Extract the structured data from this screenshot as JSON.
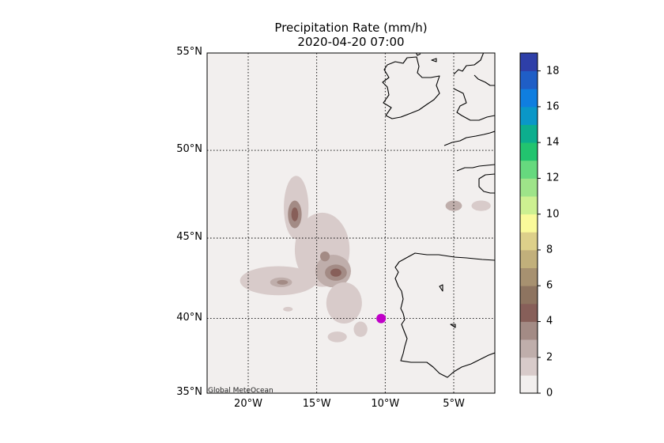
{
  "title": "Precipitation Rate (mm/h)",
  "subtitle": "2020-04-20 07:00",
  "credit": "Global MeteOcean",
  "map": {
    "lon_range": [
      -23,
      -2
    ],
    "lat_range": [
      35,
      55
    ],
    "projection": "mercator",
    "gridlines": "dotted",
    "lon_ticks": [
      {
        "value": -20,
        "label": "20°W"
      },
      {
        "value": -15,
        "label": "15°W"
      },
      {
        "value": -10,
        "label": "10°W"
      },
      {
        "value": -5,
        "label": "5°W"
      }
    ],
    "lat_ticks": [
      {
        "value": 35,
        "label": "35°N"
      },
      {
        "value": 40,
        "label": "40°N"
      },
      {
        "value": 45,
        "label": "45°N"
      },
      {
        "value": 50,
        "label": "50°N"
      },
      {
        "value": 55,
        "label": "55°N"
      }
    ],
    "marker": {
      "lon": -10.3,
      "lat": 40.0,
      "color": "#c000c8"
    }
  },
  "colorbar": {
    "min": 0,
    "max": 19,
    "step": 1,
    "tick_labels": [
      "0",
      "2",
      "4",
      "6",
      "8",
      "10",
      "12",
      "14",
      "16",
      "18"
    ],
    "tick_values": [
      0,
      2,
      4,
      6,
      8,
      10,
      12,
      14,
      16,
      18
    ],
    "colors": [
      "#f2efee",
      "#d8cbca",
      "#bfaeab",
      "#a38b85",
      "#875f59",
      "#8e7460",
      "#a79170",
      "#c2b07b",
      "#ddd08a",
      "#fafa9a",
      "#cdf091",
      "#9ee489",
      "#66d97e",
      "#22c46f",
      "#0cae8e",
      "#0a97c8",
      "#0f7ee0",
      "#1f5ec6",
      "#2e3fa8"
    ]
  },
  "precip_cells": [
    {
      "lon": -16.5,
      "lat": 46.8,
      "rx": 0.9,
      "ry": 1.8,
      "value": 1
    },
    {
      "lon": -16.6,
      "lat": 46.4,
      "rx": 0.5,
      "ry": 0.8,
      "value": 3
    },
    {
      "lon": -16.6,
      "lat": 46.4,
      "rx": 0.25,
      "ry": 0.4,
      "value": 4
    },
    {
      "lon": -14.6,
      "lat": 44.3,
      "rx": 2.0,
      "ry": 2.2,
      "value": 1
    },
    {
      "lon": -13.8,
      "lat": 43.0,
      "rx": 1.3,
      "ry": 1.0,
      "value": 2
    },
    {
      "lon": -13.6,
      "lat": 42.9,
      "rx": 0.8,
      "ry": 0.5,
      "value": 3
    },
    {
      "lon": -13.6,
      "lat": 42.9,
      "rx": 0.4,
      "ry": 0.25,
      "value": 4
    },
    {
      "lon": -14.4,
      "lat": 43.9,
      "rx": 0.35,
      "ry": 0.3,
      "value": 3
    },
    {
      "lon": -17.8,
      "lat": 42.4,
      "rx": 2.8,
      "ry": 0.9,
      "value": 1
    },
    {
      "lon": -17.6,
      "lat": 42.3,
      "rx": 0.8,
      "ry": 0.3,
      "value": 2
    },
    {
      "lon": -17.5,
      "lat": 42.3,
      "rx": 0.4,
      "ry": 0.15,
      "value": 3
    },
    {
      "lon": -13.0,
      "lat": 41.0,
      "rx": 1.3,
      "ry": 1.3,
      "value": 1
    },
    {
      "lon": -11.8,
      "lat": 39.3,
      "rx": 0.5,
      "ry": 0.5,
      "value": 1
    },
    {
      "lon": -13.5,
      "lat": 38.8,
      "rx": 0.7,
      "ry": 0.35,
      "value": 1
    },
    {
      "lon": -17.1,
      "lat": 40.6,
      "rx": 0.35,
      "ry": 0.15,
      "value": 1
    },
    {
      "lon": -5.0,
      "lat": 46.9,
      "rx": 0.6,
      "ry": 0.3,
      "value": 2
    },
    {
      "lon": -3.0,
      "lat": 46.9,
      "rx": 0.7,
      "ry": 0.3,
      "value": 1
    }
  ]
}
